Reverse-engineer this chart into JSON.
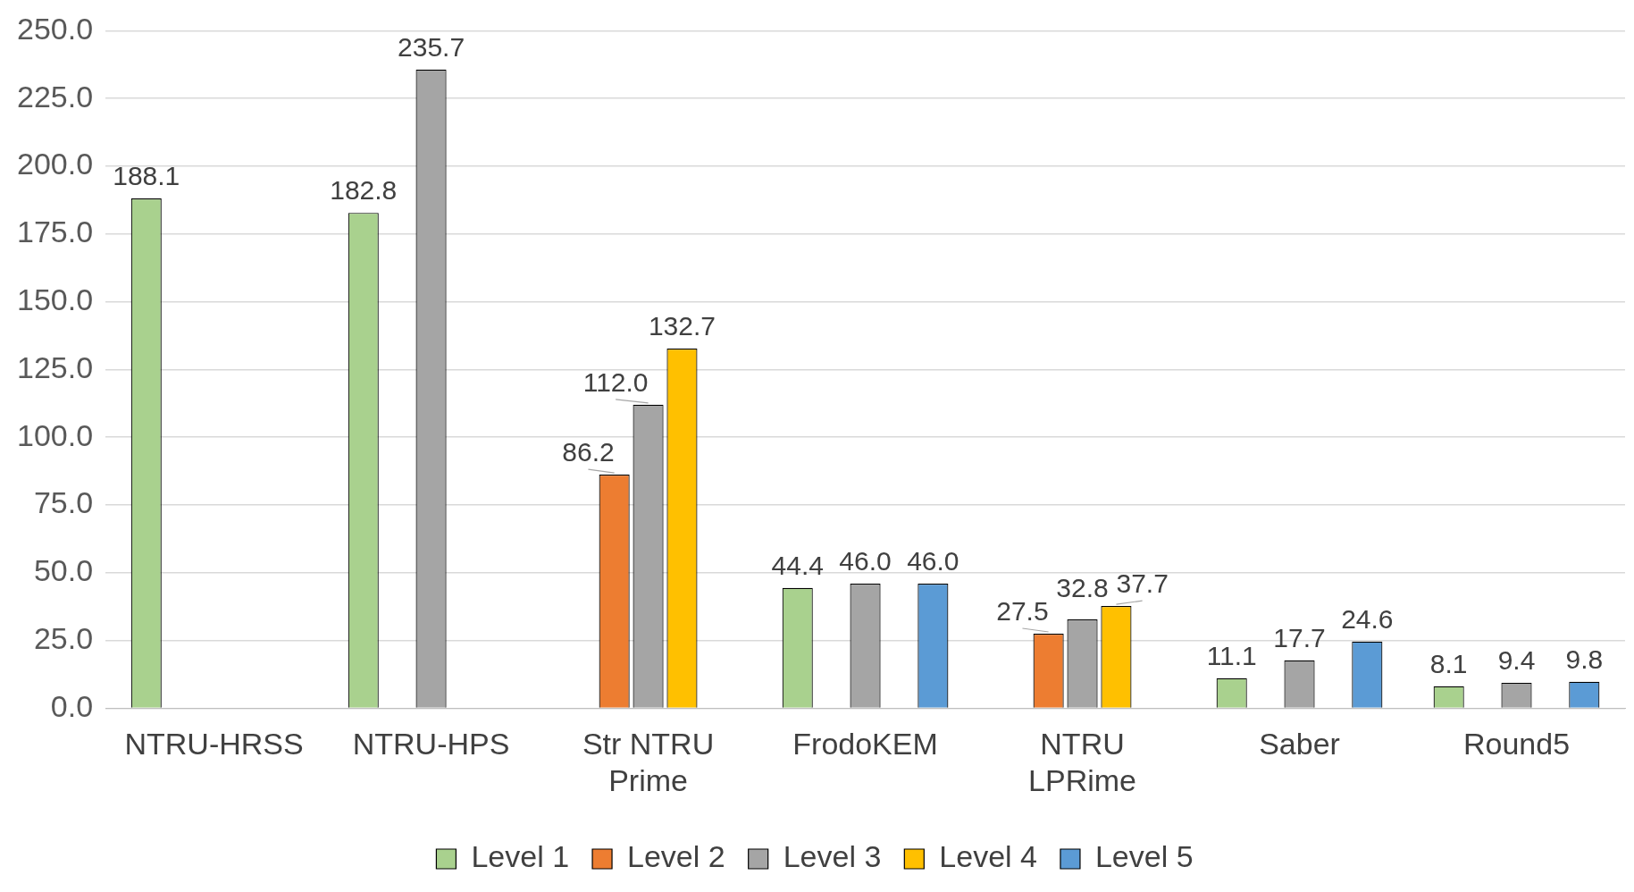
{
  "chart_data": {
    "type": "bar",
    "categories": [
      "NTRU-HRSS",
      "NTRU-HPS",
      "Str NTRU Prime",
      "FrodoKEM",
      "NTRU LPRime",
      "Saber",
      "Round5"
    ],
    "series": [
      {
        "name": "Level 1",
        "color": "#a9d18e",
        "values": [
          188.1,
          182.8,
          null,
          44.4,
          null,
          11.1,
          8.1
        ],
        "value_labels": [
          "188.1",
          "182.8",
          null,
          "44.4",
          null,
          "11.1",
          "8.1"
        ]
      },
      {
        "name": "Level 2",
        "color": "#ed7d31",
        "values": [
          null,
          null,
          86.2,
          null,
          27.5,
          null,
          null
        ],
        "value_labels": [
          null,
          null,
          "86.2",
          null,
          "27.5",
          null,
          null
        ]
      },
      {
        "name": "Level 3",
        "color": "#a5a5a5",
        "values": [
          null,
          235.7,
          112.0,
          46.0,
          32.8,
          17.7,
          9.4
        ],
        "value_labels": [
          null,
          "235.7",
          "112.0",
          "46.0",
          "32.8",
          "17.7",
          "9.4"
        ]
      },
      {
        "name": "Level 4",
        "color": "#ffc000",
        "values": [
          null,
          null,
          132.7,
          null,
          37.7,
          null,
          null
        ],
        "value_labels": [
          null,
          null,
          "132.7",
          null,
          "37.7",
          null,
          null
        ]
      },
      {
        "name": "Level 5",
        "color": "#5b9bd5",
        "values": [
          null,
          null,
          null,
          46.0,
          null,
          24.6,
          9.8
        ],
        "value_labels": [
          null,
          null,
          null,
          "46.0",
          null,
          "24.6",
          "9.8"
        ]
      }
    ],
    "ylim": [
      0,
      250
    ],
    "yticks": [
      {
        "value": 0,
        "label": "0.0"
      },
      {
        "value": 25,
        "label": "25.0"
      },
      {
        "value": 50,
        "label": "50.0"
      },
      {
        "value": 75,
        "label": "75.0"
      },
      {
        "value": 100,
        "label": "100.0"
      },
      {
        "value": 125,
        "label": "125.0"
      },
      {
        "value": 150,
        "label": "150.0"
      },
      {
        "value": 175,
        "label": "175.0"
      },
      {
        "value": 200,
        "label": "200.0"
      },
      {
        "value": 225,
        "label": "225.0"
      },
      {
        "value": 250,
        "label": "250.0"
      }
    ],
    "grid": "y",
    "legend": "bottom"
  }
}
